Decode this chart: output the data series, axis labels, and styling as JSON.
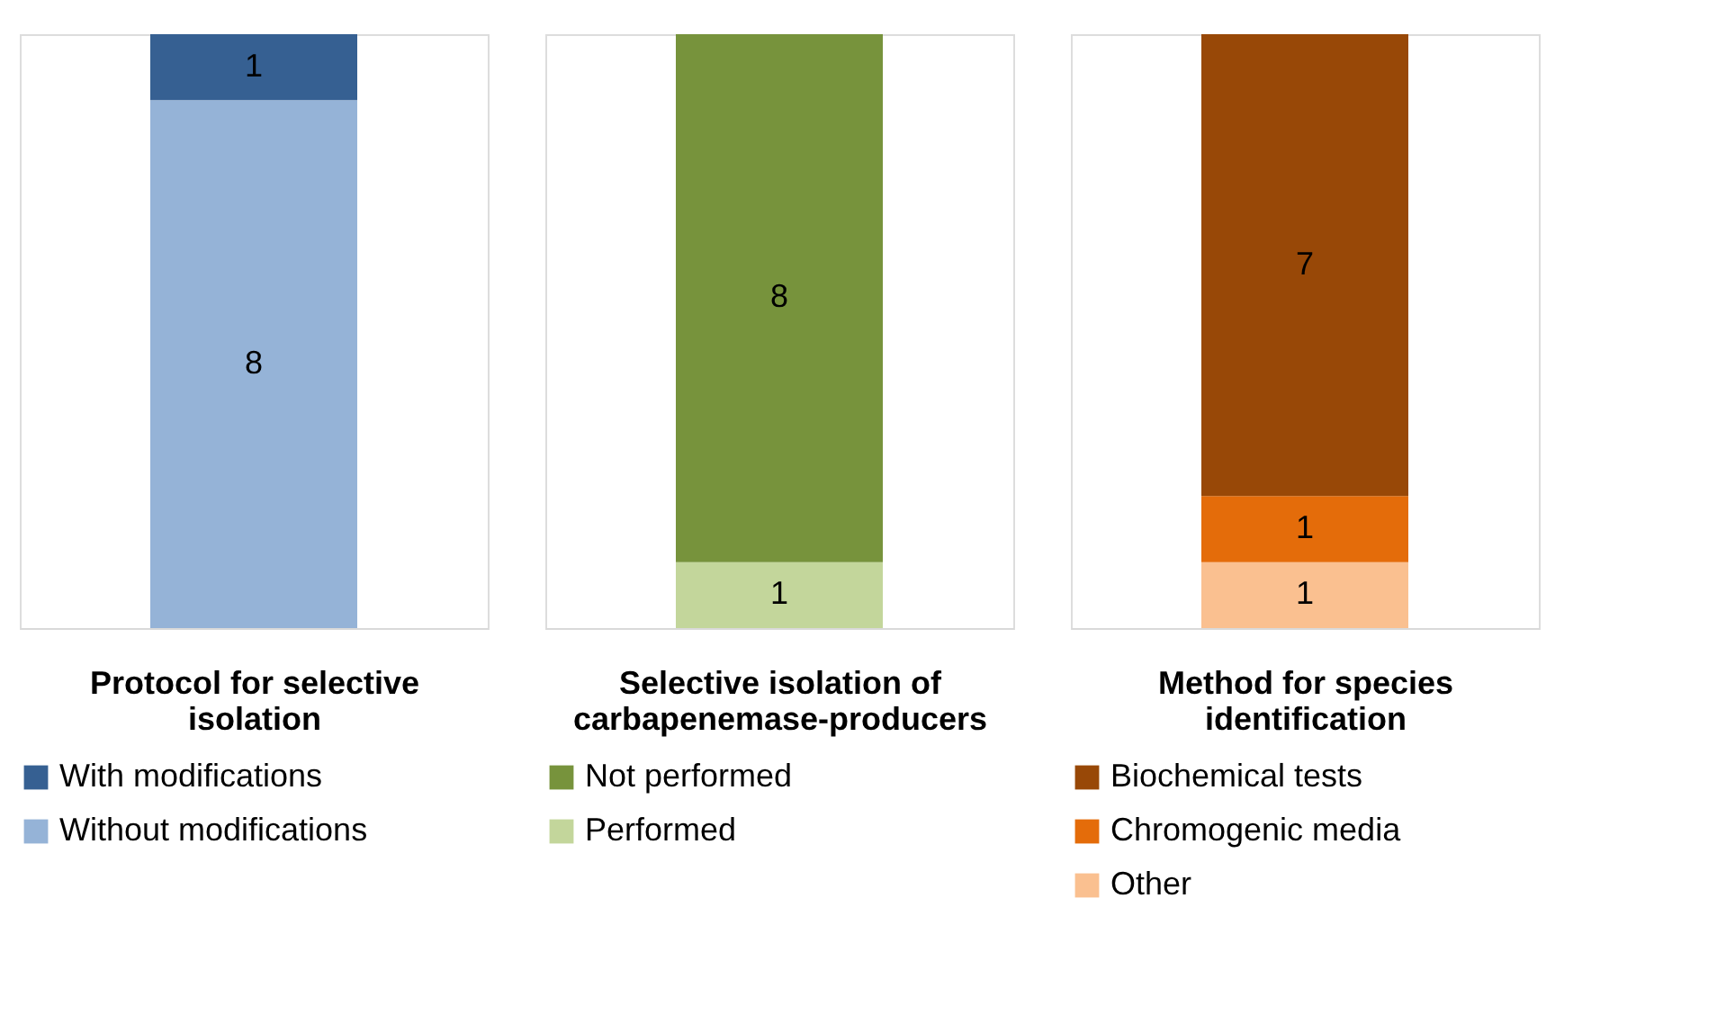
{
  "chart_data": [
    {
      "type": "bar",
      "stacked": true,
      "data_labels": true,
      "legend": "bottom",
      "xlabel": "Protocol for selective isolation",
      "categories": [
        null
      ],
      "series": [
        {
          "name": "Without modifications",
          "color": "#95b3d7",
          "values": [
            8
          ]
        },
        {
          "name": "With modifications",
          "color": "#366092",
          "values": [
            1
          ]
        }
      ]
    },
    {
      "type": "bar",
      "stacked": true,
      "data_labels": true,
      "legend": "bottom",
      "xlabel": "Selective isolation of carbapenemase-producers",
      "categories": [
        null
      ],
      "series": [
        {
          "name": "Performed",
          "color": "#c3d69b",
          "values": [
            1
          ]
        },
        {
          "name": "Not performed",
          "color": "#77933c",
          "values": [
            8
          ]
        }
      ]
    },
    {
      "type": "bar",
      "stacked": true,
      "data_labels": true,
      "legend": "bottom",
      "xlabel": "Method for species identification",
      "categories": [
        null
      ],
      "series": [
        {
          "name": "Other",
          "color": "#fac090",
          "values": [
            1
          ]
        },
        {
          "name": "Chromogenic media",
          "color": "#e46c0a",
          "values": [
            1
          ]
        },
        {
          "name": "Biochemical tests",
          "color": "#984807",
          "values": [
            7
          ]
        }
      ]
    }
  ]
}
